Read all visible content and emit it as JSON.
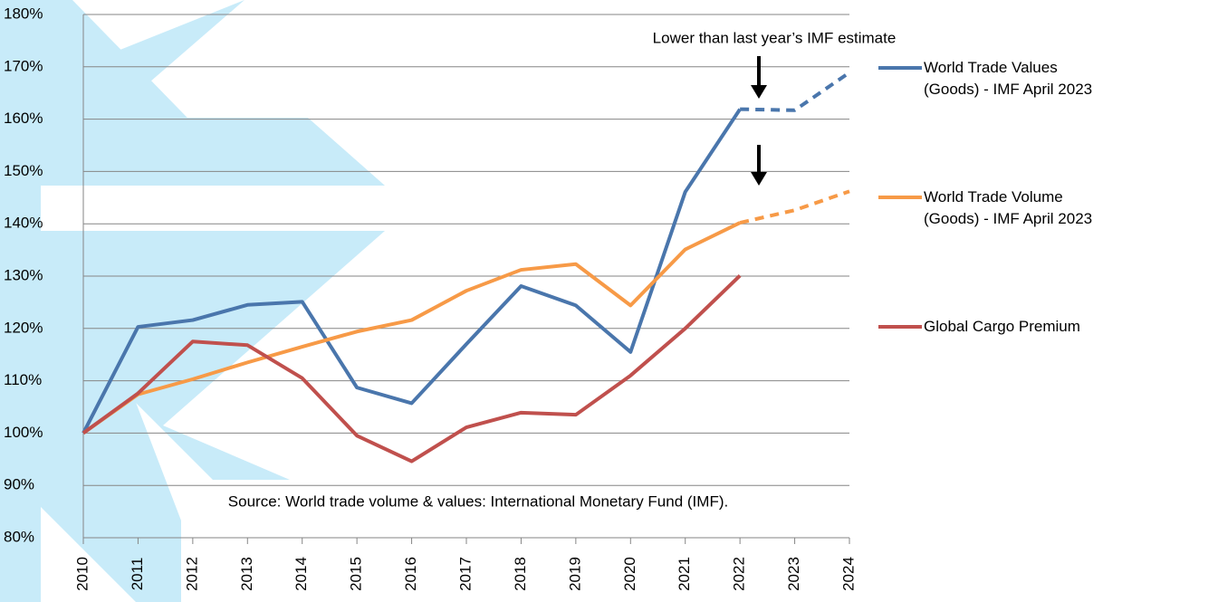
{
  "chart_data": {
    "type": "line",
    "categories": [
      "2010",
      "2011",
      "2012",
      "2013",
      "2014",
      "2015",
      "2016",
      "2017",
      "2018",
      "2019",
      "2020",
      "2021",
      "2022",
      "2023",
      "2024"
    ],
    "series": [
      {
        "name": "World Trade Values (Goods) - IMF April 2023",
        "color": "#4a76ac",
        "values": [
          100,
          120.3,
          121.6,
          124.5,
          125.1,
          108.7,
          105.7,
          117.0,
          128.1,
          124.4,
          115.5,
          146.1,
          161.9,
          161.7,
          168.9
        ]
      },
      {
        "name": "World Trade Volume (Goods) - IMF April 2023",
        "color": "#f79a47",
        "values": [
          100,
          107.4,
          110.3,
          113.5,
          116.5,
          119.4,
          121.6,
          127.2,
          131.2,
          132.3,
          124.4,
          135.1,
          140.2,
          142.6,
          146.2
        ]
      },
      {
        "name": "Global Cargo Premium",
        "color": "#c0504d",
        "values": [
          100,
          107.6,
          117.5,
          116.8,
          110.5,
          99.5,
          94.6,
          101.1,
          103.9,
          103.5,
          111.0,
          120.0,
          130.1,
          null,
          null
        ]
      }
    ],
    "dashed_from_index": 12,
    "ylim": [
      80,
      180
    ],
    "yticks": [
      {
        "value": 80,
        "label": "80%"
      },
      {
        "value": 90,
        "label": "90%"
      },
      {
        "value": 100,
        "label": "100%"
      },
      {
        "value": 110,
        "label": "110%"
      },
      {
        "value": 120,
        "label": "120%"
      },
      {
        "value": 130,
        "label": "130%"
      },
      {
        "value": 140,
        "label": "140%"
      },
      {
        "value": 150,
        "label": "150%"
      },
      {
        "value": 160,
        "label": "160%"
      },
      {
        "value": 170,
        "label": "170%"
      },
      {
        "value": 180,
        "label": "180%"
      }
    ],
    "grid": true,
    "legend": "right",
    "annotations": [
      "Lower than last year’s IMF estimate",
      "Source: World trade volume & values: International Monetary Fund (IMF)."
    ]
  }
}
